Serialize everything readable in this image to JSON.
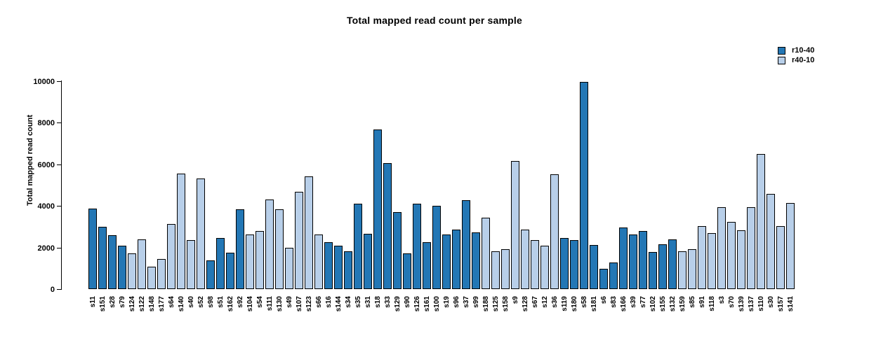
{
  "chart_data": {
    "type": "bar",
    "title": "Total mapped read count per sample",
    "ylabel": "Total mapped read count",
    "xlabel": "",
    "ylim": [
      0,
      10000
    ],
    "yticks": [
      0,
      2000,
      4000,
      6000,
      8000,
      10000
    ],
    "grid": false,
    "legend_position": "top-right",
    "legend": [
      {
        "label": "r10-40",
        "color": "#2377b5"
      },
      {
        "label": "r40-10",
        "color": "#b8cfe9"
      }
    ],
    "series_colors": {
      "r10-40": "#2377b5",
      "r40-10": "#b8cfe9"
    },
    "bars": [
      {
        "sample": "s11",
        "value": 3880,
        "group": "r10-40"
      },
      {
        "sample": "s151",
        "value": 2980,
        "group": "r10-40"
      },
      {
        "sample": "s28",
        "value": 2580,
        "group": "r10-40"
      },
      {
        "sample": "s79",
        "value": 2090,
        "group": "r10-40"
      },
      {
        "sample": "s124",
        "value": 1730,
        "group": "r40-10"
      },
      {
        "sample": "s122",
        "value": 2390,
        "group": "r40-10"
      },
      {
        "sample": "s148",
        "value": 1090,
        "group": "r40-10"
      },
      {
        "sample": "s177",
        "value": 1440,
        "group": "r40-10"
      },
      {
        "sample": "s64",
        "value": 3120,
        "group": "r40-10"
      },
      {
        "sample": "s140",
        "value": 5560,
        "group": "r40-10"
      },
      {
        "sample": "s40",
        "value": 2340,
        "group": "r40-10"
      },
      {
        "sample": "s52",
        "value": 5320,
        "group": "r40-10"
      },
      {
        "sample": "s98",
        "value": 1380,
        "group": "r10-40"
      },
      {
        "sample": "s51",
        "value": 2450,
        "group": "r10-40"
      },
      {
        "sample": "s162",
        "value": 1750,
        "group": "r10-40"
      },
      {
        "sample": "s92",
        "value": 3850,
        "group": "r10-40"
      },
      {
        "sample": "s104",
        "value": 2630,
        "group": "r40-10"
      },
      {
        "sample": "s54",
        "value": 2810,
        "group": "r40-10"
      },
      {
        "sample": "s111",
        "value": 4300,
        "group": "r40-10"
      },
      {
        "sample": "s130",
        "value": 3830,
        "group": "r40-10"
      },
      {
        "sample": "s49",
        "value": 2000,
        "group": "r40-10"
      },
      {
        "sample": "s107",
        "value": 4680,
        "group": "r40-10"
      },
      {
        "sample": "s123",
        "value": 5410,
        "group": "r40-10"
      },
      {
        "sample": "s66",
        "value": 2640,
        "group": "r40-10"
      },
      {
        "sample": "s16",
        "value": 2270,
        "group": "r10-40"
      },
      {
        "sample": "s144",
        "value": 2100,
        "group": "r10-40"
      },
      {
        "sample": "s34",
        "value": 1830,
        "group": "r10-40"
      },
      {
        "sample": "s35",
        "value": 4100,
        "group": "r10-40"
      },
      {
        "sample": "s31",
        "value": 2670,
        "group": "r10-40"
      },
      {
        "sample": "s18",
        "value": 7680,
        "group": "r10-40"
      },
      {
        "sample": "s33",
        "value": 6060,
        "group": "r10-40"
      },
      {
        "sample": "s129",
        "value": 3710,
        "group": "r10-40"
      },
      {
        "sample": "s90",
        "value": 1710,
        "group": "r10-40"
      },
      {
        "sample": "s126",
        "value": 4120,
        "group": "r10-40"
      },
      {
        "sample": "s161",
        "value": 2250,
        "group": "r10-40"
      },
      {
        "sample": "s100",
        "value": 3990,
        "group": "r10-40"
      },
      {
        "sample": "s19",
        "value": 2640,
        "group": "r10-40"
      },
      {
        "sample": "s96",
        "value": 2860,
        "group": "r10-40"
      },
      {
        "sample": "s37",
        "value": 4290,
        "group": "r10-40"
      },
      {
        "sample": "s99",
        "value": 2740,
        "group": "r10-40"
      },
      {
        "sample": "s188",
        "value": 3450,
        "group": "r40-10"
      },
      {
        "sample": "s125",
        "value": 1830,
        "group": "r40-10"
      },
      {
        "sample": "s158",
        "value": 1910,
        "group": "r40-10"
      },
      {
        "sample": "s9",
        "value": 6170,
        "group": "r40-10"
      },
      {
        "sample": "s128",
        "value": 2860,
        "group": "r40-10"
      },
      {
        "sample": "s67",
        "value": 2370,
        "group": "r40-10"
      },
      {
        "sample": "s12",
        "value": 2090,
        "group": "r40-10"
      },
      {
        "sample": "s36",
        "value": 5510,
        "group": "r40-10"
      },
      {
        "sample": "s119",
        "value": 2470,
        "group": "r10-40"
      },
      {
        "sample": "s180",
        "value": 2350,
        "group": "r10-40"
      },
      {
        "sample": "s58",
        "value": 9960,
        "group": "r10-40"
      },
      {
        "sample": "s181",
        "value": 2130,
        "group": "r10-40"
      },
      {
        "sample": "s6",
        "value": 990,
        "group": "r10-40"
      },
      {
        "sample": "s83",
        "value": 1270,
        "group": "r10-40"
      },
      {
        "sample": "s166",
        "value": 2970,
        "group": "r10-40"
      },
      {
        "sample": "s39",
        "value": 2610,
        "group": "r10-40"
      },
      {
        "sample": "s77",
        "value": 2780,
        "group": "r10-40"
      },
      {
        "sample": "s102",
        "value": 1770,
        "group": "r10-40"
      },
      {
        "sample": "s155",
        "value": 2170,
        "group": "r10-40"
      },
      {
        "sample": "s132",
        "value": 2390,
        "group": "r10-40"
      },
      {
        "sample": "s159",
        "value": 1830,
        "group": "r40-10"
      },
      {
        "sample": "s85",
        "value": 1920,
        "group": "r40-10"
      },
      {
        "sample": "s91",
        "value": 3040,
        "group": "r40-10"
      },
      {
        "sample": "s118",
        "value": 2700,
        "group": "r40-10"
      },
      {
        "sample": "s3",
        "value": 3950,
        "group": "r40-10"
      },
      {
        "sample": "s70",
        "value": 3240,
        "group": "r40-10"
      },
      {
        "sample": "s139",
        "value": 2820,
        "group": "r40-10"
      },
      {
        "sample": "s137",
        "value": 3930,
        "group": "r40-10"
      },
      {
        "sample": "s110",
        "value": 6510,
        "group": "r40-10"
      },
      {
        "sample": "s30",
        "value": 4590,
        "group": "r40-10"
      },
      {
        "sample": "s157",
        "value": 3040,
        "group": "r40-10"
      },
      {
        "sample": "s141",
        "value": 4150,
        "group": "r40-10"
      }
    ]
  }
}
